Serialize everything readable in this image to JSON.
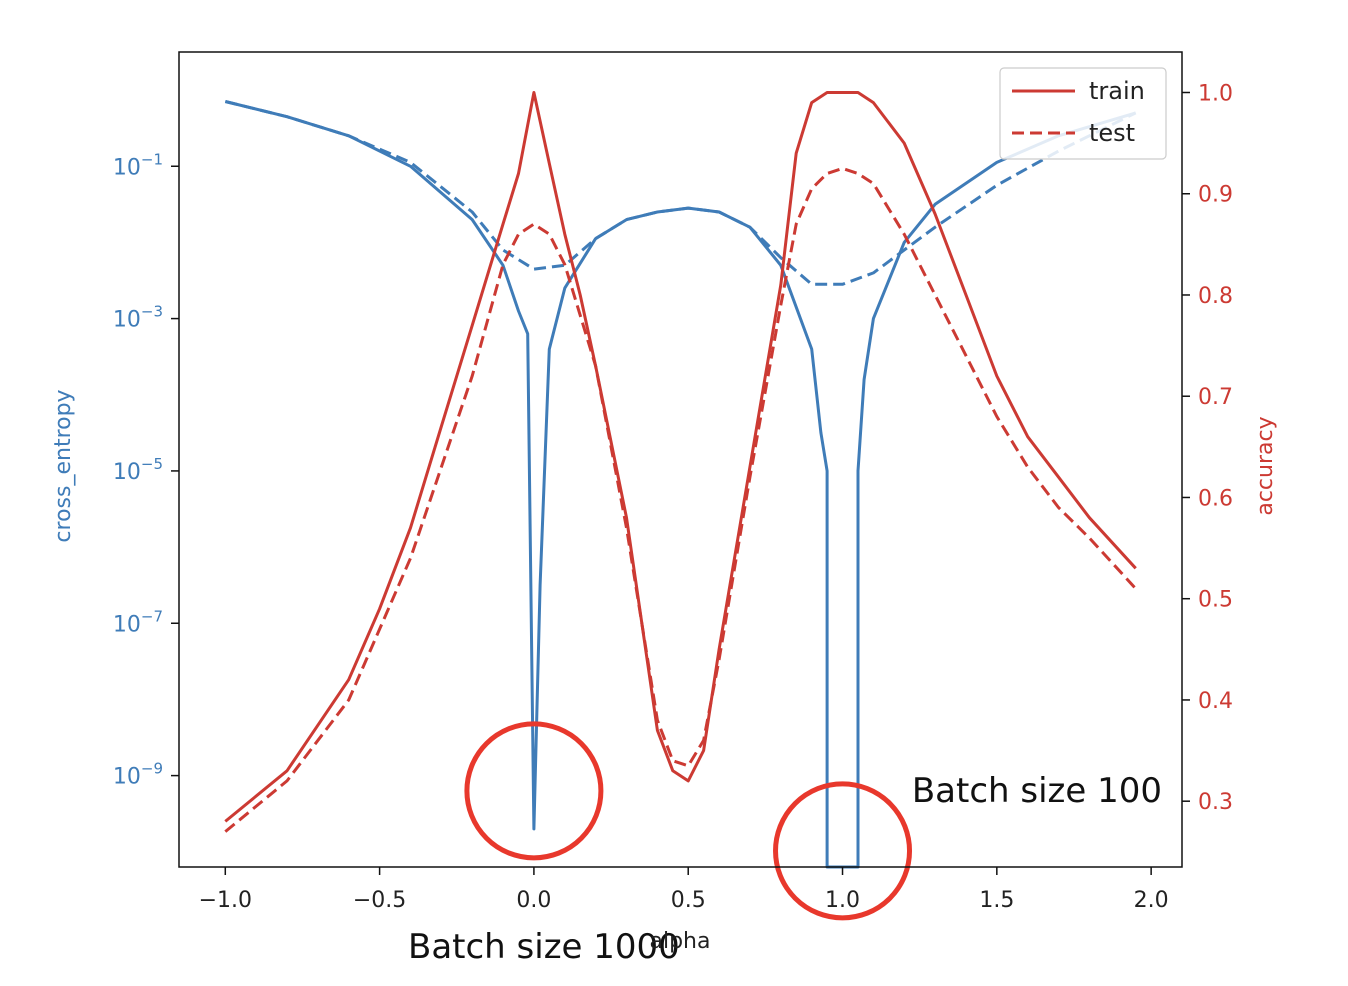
{
  "colors": {
    "loss": "#3f7cb8",
    "accuracy": "#cc3a33",
    "circle": "#e8382c",
    "frame": "#111111"
  },
  "chart_data": {
    "type": "line",
    "xlabel": "alpha",
    "ylabel_left": "cross_entropy",
    "ylabel_right": "accuracy",
    "xlim": [
      -1.15,
      2.1
    ],
    "ylim_left_log10": [
      -10.2,
      0.5
    ],
    "ylim_right": [
      0.235,
      1.04
    ],
    "x_ticks": [
      {
        "value": -1.0,
        "label": "−1.0"
      },
      {
        "value": -0.5,
        "label": "−0.5"
      },
      {
        "value": 0.0,
        "label": "0.0"
      },
      {
        "value": 0.5,
        "label": "0.5"
      },
      {
        "value": 1.0,
        "label": "1.0"
      },
      {
        "value": 1.5,
        "label": "1.5"
      },
      {
        "value": 2.0,
        "label": "2.0"
      }
    ],
    "y_left_ticks": [
      {
        "value": -1,
        "label": "−1"
      },
      {
        "value": -3,
        "label": "−3"
      },
      {
        "value": -5,
        "label": "−5"
      },
      {
        "value": -7,
        "label": "−7"
      },
      {
        "value": -9,
        "label": "−9"
      }
    ],
    "y_left_tick_base": "10",
    "y_right_ticks": [
      {
        "value": 1.0,
        "label": "1.0"
      },
      {
        "value": 0.9,
        "label": "0.9"
      },
      {
        "value": 0.8,
        "label": "0.8"
      },
      {
        "value": 0.7,
        "label": "0.7"
      },
      {
        "value": 0.6,
        "label": "0.6"
      },
      {
        "value": 0.5,
        "label": "0.5"
      },
      {
        "value": 0.4,
        "label": "0.4"
      },
      {
        "value": 0.3,
        "label": "0.3"
      }
    ],
    "legend": {
      "placement": "top-right",
      "entries": [
        {
          "name": "train",
          "style": "solid"
        },
        {
          "name": "test",
          "style": "dashed"
        }
      ]
    },
    "series": [
      {
        "name": "train",
        "axis": "left",
        "metric": "cross_entropy",
        "style": "solid",
        "x": [
          -1.0,
          -0.8,
          -0.6,
          -0.4,
          -0.2,
          -0.1,
          -0.05,
          -0.02,
          0.0,
          0.02,
          0.05,
          0.1,
          0.2,
          0.3,
          0.4,
          0.5,
          0.6,
          0.7,
          0.8,
          0.9,
          0.93,
          0.95,
          0.95,
          1.05,
          1.05,
          1.07,
          1.1,
          1.2,
          1.3,
          1.5,
          1.7,
          1.95
        ],
        "y_log10": [
          -0.15,
          -0.35,
          -0.6,
          -1.0,
          -1.7,
          -2.3,
          -2.9,
          -3.2,
          -9.7,
          -6.5,
          -3.4,
          -2.6,
          -1.95,
          -1.7,
          -1.6,
          -1.55,
          -1.6,
          -1.8,
          -2.3,
          -3.4,
          -4.5,
          -5.0,
          -10.2,
          -10.2,
          -5.0,
          -3.8,
          -3.0,
          -2.0,
          -1.5,
          -0.95,
          -0.6,
          -0.3
        ]
      },
      {
        "name": "test",
        "axis": "left",
        "metric": "cross_entropy",
        "style": "dashed",
        "x": [
          -1.0,
          -0.8,
          -0.6,
          -0.4,
          -0.2,
          -0.1,
          0.0,
          0.1,
          0.2,
          0.3,
          0.4,
          0.5,
          0.6,
          0.7,
          0.8,
          0.9,
          1.0,
          1.1,
          1.2,
          1.3,
          1.5,
          1.7,
          1.95
        ],
        "y_log10": [
          -0.15,
          -0.35,
          -0.6,
          -0.95,
          -1.6,
          -2.1,
          -2.35,
          -2.3,
          -1.95,
          -1.7,
          -1.6,
          -1.55,
          -1.6,
          -1.8,
          -2.2,
          -2.55,
          -2.55,
          -2.4,
          -2.1,
          -1.8,
          -1.25,
          -0.8,
          -0.3
        ]
      },
      {
        "name": "train",
        "axis": "right",
        "metric": "accuracy",
        "style": "solid",
        "x": [
          -1.0,
          -0.8,
          -0.6,
          -0.5,
          -0.4,
          -0.3,
          -0.2,
          -0.1,
          -0.05,
          0.0,
          0.05,
          0.1,
          0.15,
          0.2,
          0.3,
          0.4,
          0.45,
          0.5,
          0.55,
          0.6,
          0.7,
          0.8,
          0.85,
          0.9,
          0.95,
          1.0,
          1.05,
          1.1,
          1.2,
          1.3,
          1.4,
          1.5,
          1.6,
          1.7,
          1.8,
          1.95
        ],
        "y": [
          0.28,
          0.33,
          0.42,
          0.49,
          0.57,
          0.67,
          0.77,
          0.87,
          0.92,
          1.0,
          0.93,
          0.86,
          0.8,
          0.73,
          0.58,
          0.37,
          0.33,
          0.32,
          0.35,
          0.45,
          0.63,
          0.81,
          0.94,
          0.99,
          1.0,
          1.0,
          1.0,
          0.99,
          0.95,
          0.88,
          0.8,
          0.72,
          0.66,
          0.62,
          0.58,
          0.53
        ]
      },
      {
        "name": "test",
        "axis": "right",
        "metric": "accuracy",
        "style": "dashed",
        "x": [
          -1.0,
          -0.8,
          -0.6,
          -0.4,
          -0.2,
          -0.1,
          -0.05,
          0.0,
          0.05,
          0.1,
          0.2,
          0.3,
          0.4,
          0.45,
          0.5,
          0.55,
          0.6,
          0.7,
          0.8,
          0.85,
          0.9,
          0.95,
          1.0,
          1.05,
          1.1,
          1.2,
          1.3,
          1.4,
          1.5,
          1.6,
          1.7,
          1.8,
          1.95
        ],
        "y": [
          0.27,
          0.32,
          0.4,
          0.54,
          0.72,
          0.83,
          0.86,
          0.87,
          0.86,
          0.83,
          0.73,
          0.57,
          0.38,
          0.34,
          0.335,
          0.36,
          0.44,
          0.62,
          0.79,
          0.87,
          0.905,
          0.92,
          0.925,
          0.92,
          0.91,
          0.86,
          0.8,
          0.74,
          0.68,
          0.63,
          0.59,
          0.56,
          0.51
        ]
      }
    ],
    "annotations": [
      {
        "text": "Batch size 1000",
        "x": 0.0,
        "y_log10": -9.2
      },
      {
        "text": "Batch size 100",
        "x": 1.0,
        "y_log10": -9.2
      }
    ]
  }
}
